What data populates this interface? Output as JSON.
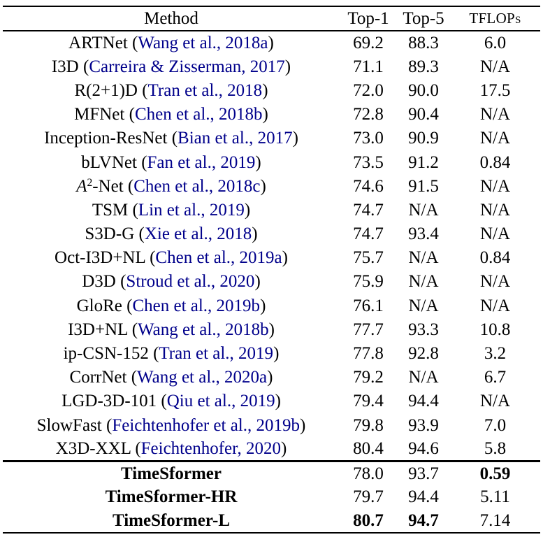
{
  "table": {
    "columns": [
      {
        "key": "method",
        "label": "Method"
      },
      {
        "key": "top1",
        "label": "Top-1"
      },
      {
        "key": "top5",
        "label": "Top-5"
      },
      {
        "key": "tflops",
        "label": "TFLOPs"
      }
    ],
    "rows": [
      {
        "method": "ARTNet",
        "cite": "Wang et al., 2018a",
        "top1": "69.2",
        "top5": "88.3",
        "tflops": "6.0",
        "group": "baseline",
        "bold": []
      },
      {
        "method": "I3D",
        "cite": "Carreira & Zisserman, 2017",
        "top1": "71.1",
        "top5": "89.3",
        "tflops": "N/A",
        "group": "baseline",
        "bold": []
      },
      {
        "method": "R(2+1)D",
        "cite": "Tran et al., 2018",
        "top1": "72.0",
        "top5": "90.0",
        "tflops": "17.5",
        "group": "baseline",
        "bold": []
      },
      {
        "method": "MFNet",
        "cite": "Chen et al., 2018b",
        "top1": "72.8",
        "top5": "90.4",
        "tflops": "N/A",
        "group": "baseline",
        "bold": []
      },
      {
        "method": "Inception-ResNet",
        "cite": "Bian et al., 2017",
        "top1": "73.0",
        "top5": "90.9",
        "tflops": "N/A",
        "group": "baseline",
        "bold": []
      },
      {
        "method": "bLVNet",
        "cite": "Fan et al., 2019",
        "top1": "73.5",
        "top5": "91.2",
        "tflops": "0.84",
        "group": "baseline",
        "bold": []
      },
      {
        "method": "A^2-Net",
        "cite": "Chen et al., 2018c",
        "top1": "74.6",
        "top5": "91.5",
        "tflops": "N/A",
        "group": "baseline",
        "bold": []
      },
      {
        "method": "TSM",
        "cite": "Lin et al., 2019",
        "top1": "74.7",
        "top5": "N/A",
        "tflops": "N/A",
        "group": "baseline",
        "bold": []
      },
      {
        "method": "S3D-G",
        "cite": "Xie et al., 2018",
        "top1": "74.7",
        "top5": "93.4",
        "tflops": "N/A",
        "group": "baseline",
        "bold": []
      },
      {
        "method": "Oct-I3D+NL",
        "cite": "Chen et al., 2019a",
        "top1": "75.7",
        "top5": "N/A",
        "tflops": "0.84",
        "group": "baseline",
        "bold": []
      },
      {
        "method": "D3D",
        "cite": "Stroud et al., 2020",
        "top1": "75.9",
        "top5": "N/A",
        "tflops": "N/A",
        "group": "baseline",
        "bold": []
      },
      {
        "method": "GloRe",
        "cite": "Chen et al., 2019b",
        "top1": "76.1",
        "top5": "N/A",
        "tflops": "N/A",
        "group": "baseline",
        "bold": []
      },
      {
        "method": "I3D+NL",
        "cite": "Wang et al., 2018b",
        "top1": "77.7",
        "top5": "93.3",
        "tflops": "10.8",
        "group": "baseline",
        "bold": []
      },
      {
        "method": "ip-CSN-152",
        "cite": "Tran et al., 2019",
        "top1": "77.8",
        "top5": "92.8",
        "tflops": "3.2",
        "group": "baseline",
        "bold": []
      },
      {
        "method": "CorrNet",
        "cite": "Wang et al., 2020a",
        "top1": "79.2",
        "top5": "N/A",
        "tflops": "6.7",
        "group": "baseline",
        "bold": []
      },
      {
        "method": "LGD-3D-101",
        "cite": "Qiu et al., 2019",
        "top1": "79.4",
        "top5": "94.4",
        "tflops": "N/A",
        "group": "baseline",
        "bold": []
      },
      {
        "method": "SlowFast",
        "cite": "Feichtenhofer et al., 2019b",
        "top1": "79.8",
        "top5": "93.9",
        "tflops": "7.0",
        "group": "baseline",
        "bold": []
      },
      {
        "method": "X3D-XXL",
        "cite": "Feichtenhofer, 2020",
        "top1": "80.4",
        "top5": "94.6",
        "tflops": "5.8",
        "group": "baseline",
        "bold": []
      },
      {
        "method": "TimeSformer",
        "cite": "",
        "top1": "78.0",
        "top5": "93.7",
        "tflops": "0.59",
        "group": "ours",
        "bold": [
          "method",
          "tflops"
        ]
      },
      {
        "method": "TimeSformer-HR",
        "cite": "",
        "top1": "79.7",
        "top5": "94.4",
        "tflops": "5.11",
        "group": "ours",
        "bold": [
          "method"
        ]
      },
      {
        "method": "TimeSformer-L",
        "cite": "",
        "top1": "80.7",
        "top5": "94.7",
        "tflops": "7.14",
        "group": "ours",
        "bold": [
          "method",
          "top1",
          "top5"
        ]
      }
    ],
    "colors": {
      "citation": "#00008B",
      "text": "#000000",
      "rule": "#000000",
      "background": "#ffffff"
    }
  }
}
